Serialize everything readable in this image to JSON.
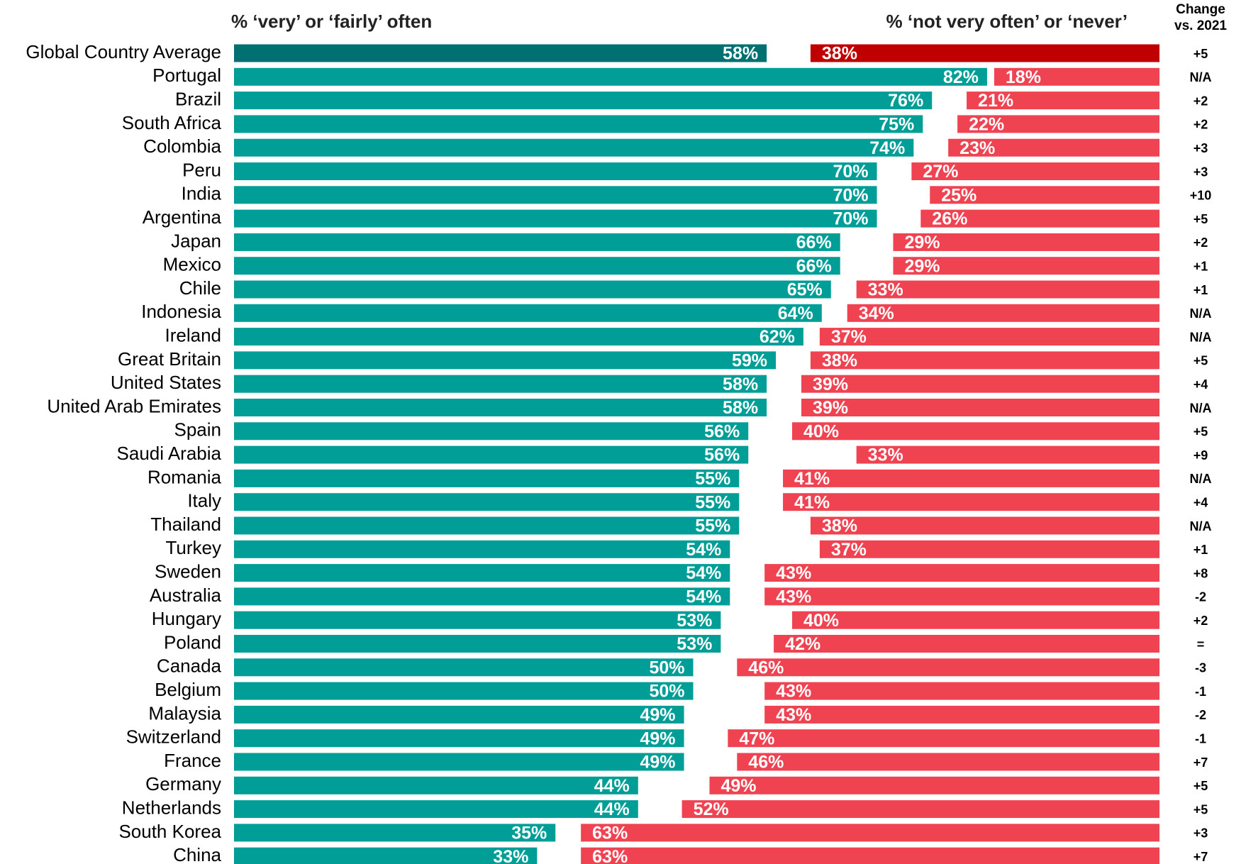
{
  "chart_data": {
    "type": "diverging_bar",
    "left_header": "% ‘very’ or ‘fairly’ often",
    "right_header": "% ‘not very often’ or ‘never’",
    "change_header": [
      "Change",
      "vs. 2021"
    ],
    "xlim": [
      0,
      100
    ],
    "categories": [
      "Global Country Average",
      "Portugal",
      "Brazil",
      "South Africa",
      "Colombia",
      "Peru",
      "India",
      "Argentina",
      "Japan",
      "Mexico",
      "Chile",
      "Indonesia",
      "Ireland",
      "Great Britain",
      "United States",
      "United Arab Emirates",
      "Spain",
      "Saudi Arabia",
      "Romania",
      "Italy",
      "Thailand",
      "Turkey",
      "Sweden",
      "Australia",
      "Hungary",
      "Poland",
      "Canada",
      "Belgium",
      "Malaysia",
      "Switzerland",
      "France",
      "Germany",
      "Netherlands",
      "South Korea",
      "China"
    ],
    "series": [
      {
        "name": "% ‘very’ or ‘fairly’ often",
        "color": "#009e96",
        "highlight_color": "#007070",
        "values": [
          58,
          82,
          76,
          75,
          74,
          70,
          70,
          70,
          66,
          66,
          65,
          64,
          62,
          59,
          58,
          58,
          56,
          56,
          55,
          55,
          55,
          54,
          54,
          54,
          53,
          53,
          50,
          50,
          49,
          49,
          49,
          44,
          44,
          35,
          33
        ],
        "value_labels": [
          "58%",
          "82%",
          "76%",
          "75%",
          "74%",
          "70%",
          "70%",
          "70%",
          "66%",
          "66%",
          "65%",
          "64%",
          "62%",
          "59%",
          "58%",
          "58%",
          "56%",
          "56%",
          "55%",
          "55%",
          "55%",
          "54%",
          "54%",
          "54%",
          "53%",
          "53%",
          "50%",
          "50%",
          "49%",
          "49%",
          "49%",
          "44%",
          "44%",
          "35%",
          "33%"
        ]
      },
      {
        "name": "% ‘not very often’ or ‘never’",
        "color": "#f04352",
        "highlight_color": "#c00000",
        "values": [
          38,
          18,
          21,
          22,
          23,
          27,
          25,
          26,
          29,
          29,
          33,
          34,
          37,
          38,
          39,
          39,
          40,
          33,
          41,
          41,
          38,
          37,
          43,
          43,
          40,
          42,
          46,
          43,
          43,
          47,
          46,
          49,
          52,
          63,
          63
        ],
        "value_labels": [
          "38%",
          "18%",
          "21%",
          "22%",
          "23%",
          "27%",
          "25%",
          "26%",
          "29%",
          "29%",
          "33%",
          "34%",
          "37%",
          "38%",
          "39%",
          "39%",
          "40%",
          "33%",
          "41%",
          "41%",
          "38%",
          "37%",
          "43%",
          "43%",
          "40%",
          "42%",
          "46%",
          "43%",
          "43%",
          "47%",
          "46%",
          "49%",
          "52%",
          "63%",
          "63%"
        ]
      }
    ],
    "changes": [
      "+5",
      "N/A",
      "+2",
      "+2",
      "+3",
      "+3",
      "+10",
      "+5",
      "+2",
      "+1",
      "+1",
      "N/A",
      "N/A",
      "+5",
      "+4",
      "N/A",
      "+5",
      "+9",
      "N/A",
      "+4",
      "N/A",
      "+1",
      "+8",
      "-2",
      "+2",
      "=",
      "-3",
      "-1",
      "-2",
      "-1",
      "+7",
      "+5",
      "+5",
      "+3",
      "+7"
    ]
  }
}
